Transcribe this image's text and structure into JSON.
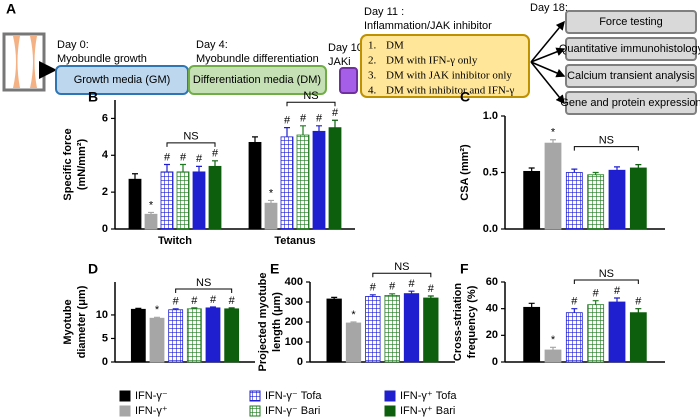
{
  "diagram": {
    "panel": "A",
    "stages": [
      {
        "day": "Day 0:",
        "label": "Myobundle growth",
        "box": "Growth media (GM)"
      },
      {
        "day": "Day 4:",
        "label": "Myobundle differentiation",
        "box": "Differentiation media (DM)"
      },
      {
        "day": "Day 10:",
        "label": "JAKi"
      }
    ],
    "treatment": {
      "day": "Day 11 :",
      "label": "Inflammation/JAK inhibitor",
      "items": [
        {
          "num": "1.",
          "text": "DM"
        },
        {
          "num": "2.",
          "text": "DM with IFN-γ only"
        },
        {
          "num": "3.",
          "text": "DM with JAK inhibitor only"
        },
        {
          "num": "4.",
          "text": "DM with inhibitor and IFN-γ"
        }
      ]
    },
    "assays": {
      "day": "Day 18:",
      "items": [
        "Force testing",
        "Quantitative immunohistology",
        "Calcium transient analysis",
        "Gene and protein expression"
      ]
    }
  },
  "legend": [
    {
      "name": "IFN-γ⁻",
      "color": "#000000",
      "hatch": false
    },
    {
      "name": "IFN-γ⁺",
      "color": "#a6a6a6",
      "hatch": false
    },
    {
      "name": "IFN-γ⁻ Tofa",
      "color": "#1f1fd0",
      "hatch": true
    },
    {
      "name": "IFN-γ⁻ Bari",
      "color": "#1e7a1e",
      "hatch": true
    },
    {
      "name": "IFN-γ⁺ Tofa",
      "color": "#1f1fd0",
      "hatch": false
    },
    {
      "name": "IFN-γ⁺ Bari",
      "color": "#0d5e0d",
      "hatch": false
    }
  ],
  "chart_data": [
    {
      "type": "bar",
      "panel": "B",
      "ylabel": [
        "Specific force",
        "(mN/mm²)"
      ],
      "categories": [
        "Twitch",
        "Tetanus"
      ],
      "ylim": [
        0,
        7
      ],
      "yticks": [
        0,
        2,
        4,
        6
      ],
      "ns": "NS",
      "series": [
        {
          "values": [
            2.7,
            4.7
          ],
          "errors": [
            0.3,
            0.3
          ]
        },
        {
          "values": [
            0.8,
            1.4
          ],
          "errors": [
            0.1,
            0.15
          ],
          "annotation": "*"
        },
        {
          "values": [
            3.1,
            5.0
          ],
          "errors": [
            0.4,
            0.5
          ],
          "annotation": "#"
        },
        {
          "values": [
            3.1,
            5.1
          ],
          "errors": [
            0.4,
            0.5
          ],
          "annotation": "#"
        },
        {
          "values": [
            3.1,
            5.3
          ],
          "errors": [
            0.3,
            0.3
          ],
          "annotation": "#"
        },
        {
          "values": [
            3.4,
            5.5
          ],
          "errors": [
            0.3,
            0.4
          ],
          "annotation": "#"
        }
      ]
    },
    {
      "type": "bar",
      "panel": "C",
      "ylabel": [
        "CSA (mm²)"
      ],
      "ylim": [
        0,
        1
      ],
      "yticks": [
        {
          "value": 0,
          "label": "0.0"
        },
        {
          "value": 0.5,
          "label": "0.5"
        },
        {
          "value": 1,
          "label": "1.0"
        }
      ],
      "ns": "NS",
      "series": [
        {
          "values": [
            0.51
          ],
          "errors": [
            0.03
          ]
        },
        {
          "values": [
            0.76
          ],
          "errors": [
            0.03
          ],
          "annotation": "*"
        },
        {
          "values": [
            0.5
          ],
          "errors": [
            0.03
          ]
        },
        {
          "values": [
            0.48
          ],
          "errors": [
            0.02
          ]
        },
        {
          "values": [
            0.52
          ],
          "errors": [
            0.03
          ]
        },
        {
          "values": [
            0.54
          ],
          "errors": [
            0.03
          ]
        }
      ]
    },
    {
      "type": "bar",
      "panel": "D",
      "ylabel": [
        "Myotube",
        "diameter (μm)"
      ],
      "ylim": [
        0,
        17
      ],
      "yticks": [
        0,
        5,
        10
      ],
      "ns": "NS",
      "series": [
        {
          "values": [
            11.2
          ],
          "errors": [
            0.2
          ]
        },
        {
          "values": [
            9.3
          ],
          "errors": [
            0.2
          ],
          "annotation": "*"
        },
        {
          "values": [
            11.1
          ],
          "errors": [
            0.2
          ],
          "annotation": "#"
        },
        {
          "values": [
            11.3
          ],
          "errors": [
            0.2
          ],
          "annotation": "#"
        },
        {
          "values": [
            11.5
          ],
          "errors": [
            0.2
          ],
          "annotation": "#"
        },
        {
          "values": [
            11.3
          ],
          "errors": [
            0.2
          ],
          "annotation": "#"
        }
      ]
    },
    {
      "type": "bar",
      "panel": "E",
      "ylabel": [
        "Projected myotube",
        "length (μm)"
      ],
      "ylim": [
        0,
        400
      ],
      "yticks": [
        0,
        100,
        200,
        300,
        400
      ],
      "ns": "NS",
      "series": [
        {
          "values": [
            315
          ],
          "errors": [
            8
          ]
        },
        {
          "values": [
            195
          ],
          "errors": [
            5
          ],
          "annotation": "*"
        },
        {
          "values": [
            328
          ],
          "errors": [
            8
          ],
          "annotation": "#"
        },
        {
          "values": [
            333
          ],
          "errors": [
            8
          ],
          "annotation": "#"
        },
        {
          "values": [
            342
          ],
          "errors": [
            12
          ],
          "annotation": "#"
        },
        {
          "values": [
            320
          ],
          "errors": [
            10
          ],
          "annotation": "#"
        }
      ]
    },
    {
      "type": "bar",
      "panel": "F",
      "ylabel": [
        "Cross-striation",
        "frequency (%)"
      ],
      "ylim": [
        0,
        60
      ],
      "yticks": [
        0,
        20,
        40,
        60
      ],
      "ns": "NS",
      "series": [
        {
          "values": [
            41
          ],
          "errors": [
            3
          ]
        },
        {
          "values": [
            9
          ],
          "errors": [
            2
          ],
          "annotation": "*"
        },
        {
          "values": [
            37
          ],
          "errors": [
            3
          ],
          "annotation": "#"
        },
        {
          "values": [
            43
          ],
          "errors": [
            3
          ],
          "annotation": "#"
        },
        {
          "values": [
            45
          ],
          "errors": [
            3
          ],
          "annotation": "#"
        },
        {
          "values": [
            37
          ],
          "errors": [
            3
          ],
          "annotation": "#"
        }
      ]
    }
  ]
}
